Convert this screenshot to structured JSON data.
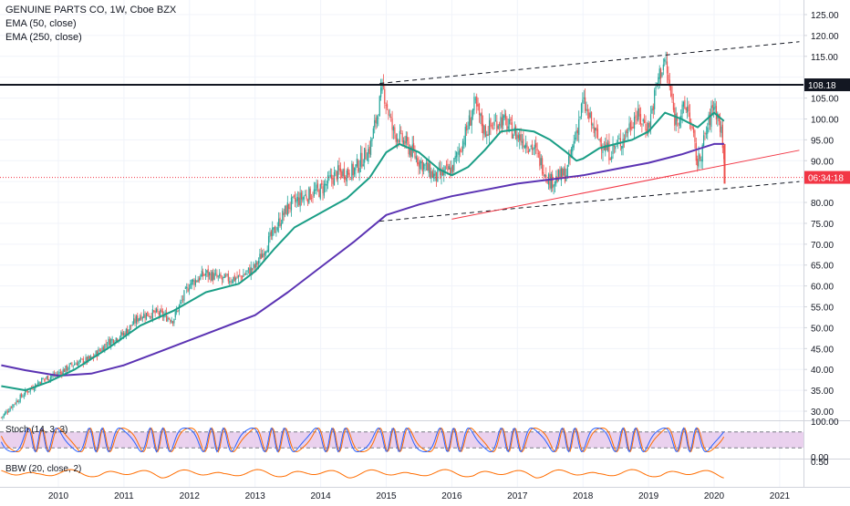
{
  "chart_data": {
    "type": "candlestick",
    "title": "GENUINE PARTS CO, 1W, Cboe BZX",
    "indicators": [
      "EMA (50, close)",
      "EMA (250, close)"
    ],
    "price_axis_ticks": [
      "125.00",
      "120.00",
      "115.00",
      "110.00",
      "105.00",
      "100.00",
      "95.00",
      "90.00",
      "85.00",
      "80.00",
      "75.00",
      "70.00",
      "65.00",
      "60.00",
      "55.00",
      "50.00",
      "45.00",
      "40.00",
      "35.00",
      "30.00"
    ],
    "x_axis_ticks": [
      "2010",
      "2011",
      "2012",
      "2013",
      "2014",
      "2015",
      "2016",
      "2017",
      "2018",
      "2019",
      "2020",
      "2021"
    ],
    "ylim": [
      27,
      127
    ],
    "xlim": [
      2009.13,
      2021.3
    ],
    "horizontal_line": {
      "value": 108.18,
      "label": "108.18",
      "color": "#131722"
    },
    "current_price_label": {
      "value": 86.0,
      "label": "06:34:18",
      "color": "#f23645"
    },
    "close_series": [
      [
        2009.13,
        28.5
      ],
      [
        2009.3,
        31.5
      ],
      [
        2009.5,
        34.5
      ],
      [
        2009.75,
        37.5
      ],
      [
        2010.0,
        39.0
      ],
      [
        2010.25,
        41.5
      ],
      [
        2010.5,
        42.5
      ],
      [
        2010.75,
        46.5
      ],
      [
        2011.0,
        48.5
      ],
      [
        2011.25,
        53.0
      ],
      [
        2011.5,
        53.5
      ],
      [
        2011.75,
        52.0
      ],
      [
        2012.0,
        60.5
      ],
      [
        2012.25,
        63.0
      ],
      [
        2012.5,
        61.5
      ],
      [
        2012.75,
        62.0
      ],
      [
        2013.0,
        64.5
      ],
      [
        2013.25,
        72.0
      ],
      [
        2013.5,
        79.0
      ],
      [
        2013.75,
        81.5
      ],
      [
        2014.0,
        83.0
      ],
      [
        2014.25,
        87.0
      ],
      [
        2014.5,
        87.5
      ],
      [
        2014.75,
        93.0
      ],
      [
        2014.95,
        107.5
      ],
      [
        2015.1,
        97.0
      ],
      [
        2015.3,
        94.0
      ],
      [
        2015.5,
        90.0
      ],
      [
        2015.75,
        86.0
      ],
      [
        2016.0,
        88.0
      ],
      [
        2016.2,
        96.0
      ],
      [
        2016.35,
        103.5
      ],
      [
        2016.5,
        97.0
      ],
      [
        2016.75,
        100.0
      ],
      [
        2017.0,
        96.0
      ],
      [
        2017.25,
        93.0
      ],
      [
        2017.5,
        85.0
      ],
      [
        2017.75,
        87.0
      ],
      [
        2018.0,
        104.0
      ],
      [
        2018.2,
        96.0
      ],
      [
        2018.4,
        92.0
      ],
      [
        2018.6,
        95.0
      ],
      [
        2018.8,
        101.0
      ],
      [
        2019.0,
        98.0
      ],
      [
        2019.15,
        110.0
      ],
      [
        2019.25,
        114.0
      ],
      [
        2019.4,
        100.0
      ],
      [
        2019.6,
        103.0
      ],
      [
        2019.75,
        89.0
      ],
      [
        2019.9,
        98.0
      ],
      [
        2020.0,
        104.0
      ],
      [
        2020.08,
        99.0
      ],
      [
        2020.14,
        94.0
      ],
      [
        2020.16,
        84.5
      ]
    ],
    "ema_50_series": [
      [
        2009.13,
        36.0
      ],
      [
        2009.5,
        35.0
      ],
      [
        2009.85,
        37.0
      ],
      [
        2010.25,
        40.0
      ],
      [
        2010.75,
        45.0
      ],
      [
        2011.25,
        50.5
      ],
      [
        2011.75,
        54.0
      ],
      [
        2012.25,
        58.5
      ],
      [
        2012.75,
        60.5
      ],
      [
        2013.0,
        63.5
      ],
      [
        2013.3,
        69.0
      ],
      [
        2013.6,
        74.0
      ],
      [
        2014.0,
        77.5
      ],
      [
        2014.4,
        81.0
      ],
      [
        2014.75,
        86.0
      ],
      [
        2015.0,
        92.0
      ],
      [
        2015.2,
        94.0
      ],
      [
        2015.5,
        92.0
      ],
      [
        2015.8,
        88.0
      ],
      [
        2016.0,
        86.5
      ],
      [
        2016.25,
        88.5
      ],
      [
        2016.5,
        92.5
      ],
      [
        2016.75,
        97.0
      ],
      [
        2017.0,
        97.5
      ],
      [
        2017.25,
        97.0
      ],
      [
        2017.5,
        95.0
      ],
      [
        2017.75,
        92.0
      ],
      [
        2017.9,
        90.0
      ],
      [
        2018.0,
        90.5
      ],
      [
        2018.25,
        93.0
      ],
      [
        2018.5,
        94.0
      ],
      [
        2018.75,
        95.0
      ],
      [
        2019.0,
        97.0
      ],
      [
        2019.25,
        101.5
      ],
      [
        2019.5,
        100.0
      ],
      [
        2019.75,
        98.0
      ],
      [
        2020.0,
        101.5
      ],
      [
        2020.15,
        99.5
      ]
    ],
    "ema_250_series": [
      [
        2009.13,
        41.0
      ],
      [
        2009.5,
        39.8
      ],
      [
        2010.0,
        38.5
      ],
      [
        2010.5,
        39.0
      ],
      [
        2011.0,
        41.0
      ],
      [
        2011.5,
        44.0
      ],
      [
        2012.0,
        47.0
      ],
      [
        2012.5,
        50.0
      ],
      [
        2013.0,
        53.0
      ],
      [
        2013.5,
        58.5
      ],
      [
        2014.0,
        64.5
      ],
      [
        2014.5,
        70.5
      ],
      [
        2015.0,
        77.0
      ],
      [
        2015.5,
        79.5
      ],
      [
        2016.0,
        81.5
      ],
      [
        2016.5,
        83.0
      ],
      [
        2017.0,
        84.5
      ],
      [
        2017.5,
        85.5
      ],
      [
        2018.0,
        86.5
      ],
      [
        2018.5,
        88.0
      ],
      [
        2019.0,
        89.5
      ],
      [
        2019.5,
        91.5
      ],
      [
        2020.0,
        94.0
      ],
      [
        2020.15,
        94.0
      ]
    ],
    "trendlines": [
      {
        "from": [
          2014.9,
          108.5
        ],
        "to": [
          2021.3,
          118.5
        ],
        "style": "dashed",
        "color": "#131722"
      },
      {
        "from": [
          2014.9,
          75.5
        ],
        "to": [
          2021.3,
          85.0
        ],
        "style": "dashed",
        "color": "#131722"
      },
      {
        "from": [
          2016.0,
          76.0
        ],
        "to": [
          2021.3,
          92.5
        ],
        "style": "solid",
        "color": "#f23645"
      }
    ],
    "stoch": {
      "label": "Stoch (14, 3, 3)",
      "axis_ticks": [
        "100.00",
        "0.00"
      ]
    },
    "bbw": {
      "label": "BBW (20, close, 2)",
      "axis_ticks": [
        "0.50"
      ]
    },
    "colors": {
      "up": "#26a69a",
      "down": "#ef5350",
      "ema50": "#1b9e86",
      "ema250": "#5b33b3",
      "stoch_band": "#e1bee7",
      "bbw": "#ff6d00"
    }
  }
}
